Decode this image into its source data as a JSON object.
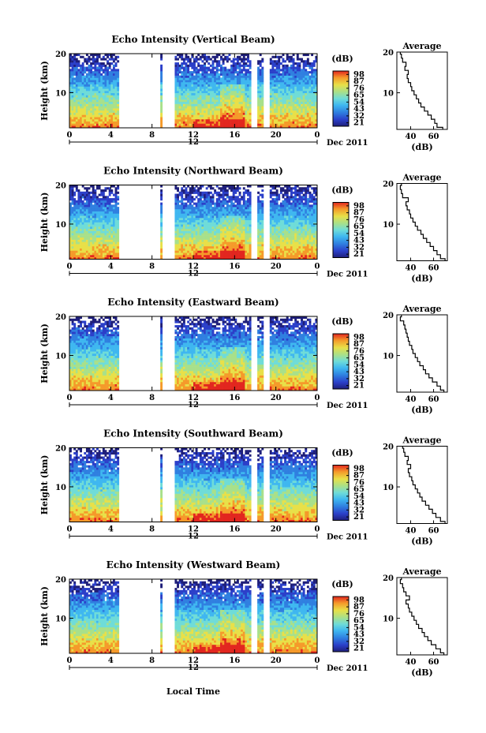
{
  "chart_data": {
    "type": "heatmap",
    "common": {
      "time_ticks": [
        "0",
        "4",
        "8",
        "12",
        "16",
        "20",
        "0"
      ],
      "time_range": [
        0,
        24
      ],
      "height_ticks": [
        "20",
        "10"
      ],
      "height_range": [
        1,
        20
      ],
      "ylabel": "Height (km)",
      "colorbar_unit": "(dB)",
      "colorbar_ticks": [
        "98",
        "87",
        "76",
        "65",
        "54",
        "43",
        "32",
        "21"
      ],
      "colorbar_range": [
        21,
        98
      ],
      "date_label": "Dec 2011",
      "date_marker": "12",
      "xlabel": "Local Time",
      "avg_title": "Average",
      "avg_xlabel": "(dB)",
      "avg_xticks": [
        "40",
        "60"
      ],
      "avg_xrange": [
        28,
        72
      ],
      "data_gaps_hours": [
        [
          4.9,
          5.5
        ],
        [
          5.5,
          8.7
        ],
        [
          9.1,
          9.5
        ],
        [
          9.5,
          10.2
        ],
        [
          17.7,
          18.1
        ],
        [
          18.9,
          19.4
        ]
      ],
      "colors": [
        "#1f1f7a",
        "#2b3fc9",
        "#2f7fe0",
        "#3fb7f0",
        "#6fdcd8",
        "#a8e08a",
        "#e8e048",
        "#f59a2a",
        "#e2261f"
      ]
    },
    "panels": [
      {
        "title": "Echo Intensity (Vertical Beam)",
        "average_profile": {
          "height_km": [
            1,
            2,
            3,
            4,
            5,
            6,
            7,
            8,
            9,
            10,
            11,
            12,
            13,
            14,
            15,
            16,
            17,
            18,
            19,
            20
          ],
          "db": [
            68,
            63,
            61,
            58,
            55,
            52,
            49,
            47,
            45,
            43,
            41,
            40,
            38,
            37,
            38,
            35,
            36,
            33,
            32,
            31
          ]
        }
      },
      {
        "title": "Echo Intensity (Northward Beam)",
        "average_profile": {
          "height_km": [
            1,
            2,
            3,
            4,
            5,
            6,
            7,
            8,
            9,
            10,
            11,
            12,
            13,
            14,
            15,
            16,
            17,
            18,
            19,
            20
          ],
          "db": [
            70,
            66,
            63,
            60,
            57,
            54,
            51,
            49,
            46,
            44,
            42,
            40,
            39,
            37,
            36,
            38,
            33,
            32,
            31,
            32
          ]
        }
      },
      {
        "title": "Echo Intensity (Eastward Beam)",
        "average_profile": {
          "height_km": [
            1,
            2,
            3,
            4,
            5,
            6,
            7,
            8,
            9,
            10,
            11,
            12,
            13,
            14,
            15,
            16,
            17,
            18,
            19,
            20
          ],
          "db": [
            69,
            66,
            63,
            59,
            56,
            53,
            51,
            48,
            46,
            44,
            42,
            41,
            39,
            38,
            37,
            36,
            35,
            34,
            31,
            32
          ]
        }
      },
      {
        "title": "Echo Intensity (Southward Beam)",
        "average_profile": {
          "height_km": [
            1,
            2,
            3,
            4,
            5,
            6,
            7,
            8,
            9,
            10,
            11,
            12,
            13,
            14,
            15,
            16,
            17,
            18,
            19,
            20
          ],
          "db": [
            70,
            66,
            62,
            59,
            56,
            53,
            50,
            48,
            46,
            44,
            42,
            41,
            39,
            38,
            40,
            37,
            38,
            35,
            34,
            33
          ]
        }
      },
      {
        "title": "Echo Intensity (Westward Beam)",
        "average_profile": {
          "height_km": [
            1,
            2,
            3,
            4,
            5,
            6,
            7,
            8,
            9,
            10,
            11,
            12,
            13,
            14,
            15,
            16,
            17,
            18,
            19,
            20
          ],
          "db": [
            69,
            66,
            62,
            58,
            55,
            52,
            50,
            47,
            45,
            43,
            41,
            39,
            38,
            36,
            39,
            36,
            34,
            33,
            31,
            32
          ]
        }
      }
    ]
  }
}
